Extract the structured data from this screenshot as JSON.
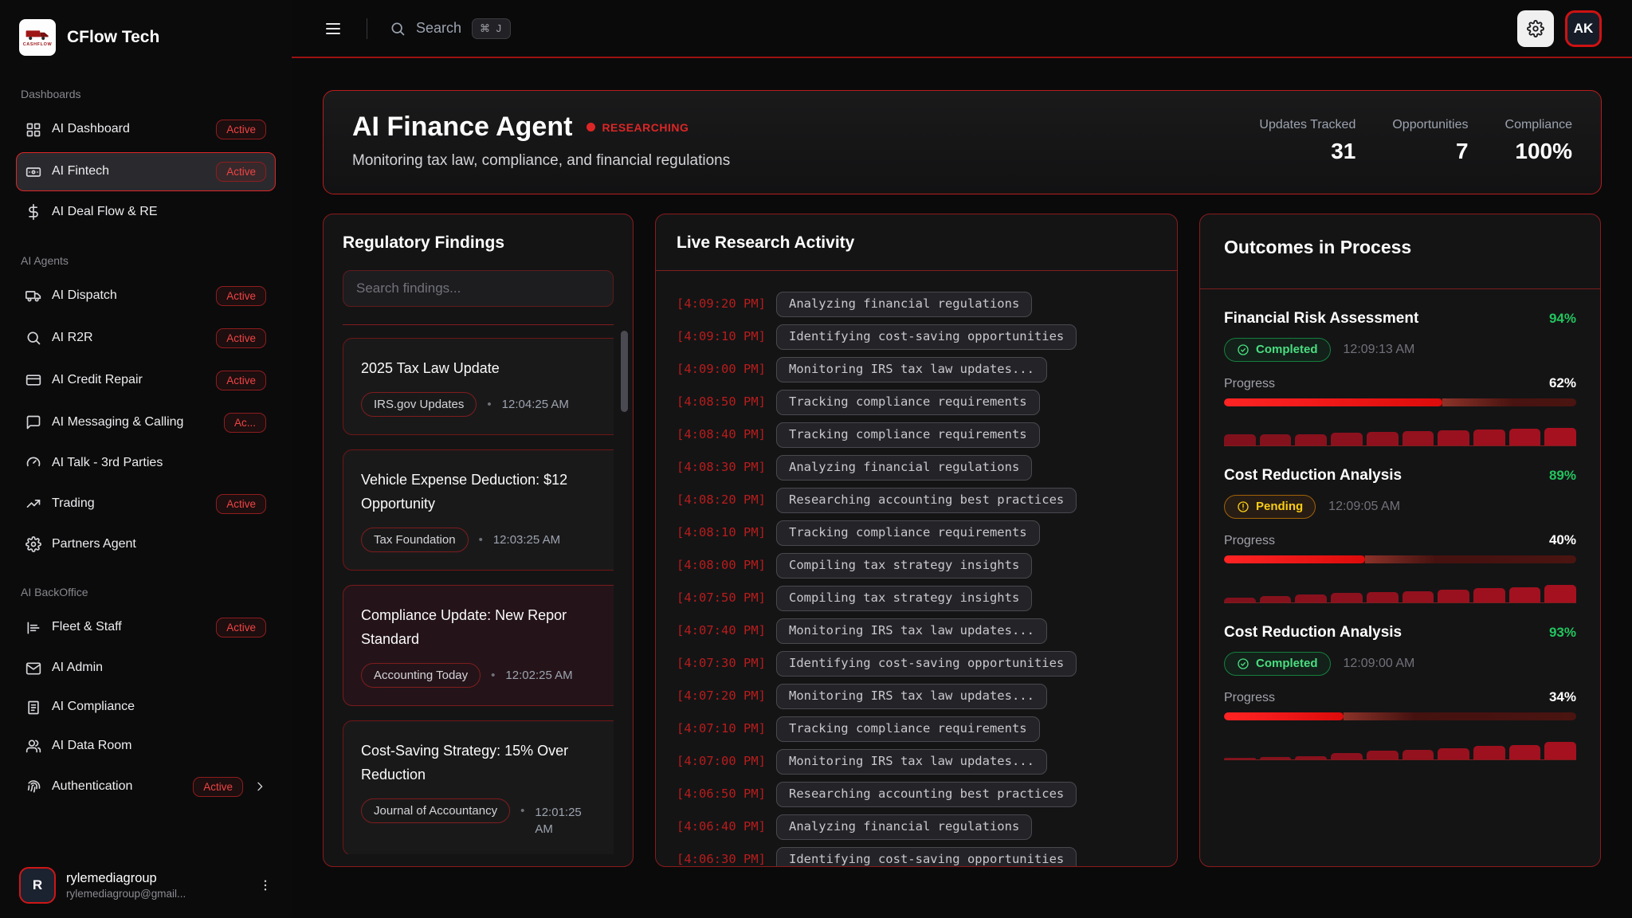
{
  "brand": {
    "name": "CFlow Tech",
    "logo_text": "CASHFLOW",
    "logo_icon": "truck-logo-icon"
  },
  "topbar": {
    "menu_icon": "menu-icon",
    "search_icon": "search-icon",
    "search_label": "Search",
    "search_shortcut": "⌘ J",
    "settings_icon": "gear-icon",
    "avatar_initials": "AK"
  },
  "sidebar": {
    "sections": [
      {
        "label": "Dashboards",
        "items": [
          {
            "label": "AI Dashboard",
            "icon": "grid-icon",
            "badge": "Active"
          },
          {
            "label": "AI Fintech",
            "icon": "banknote-icon",
            "badge": "Active",
            "selected": true
          },
          {
            "label": "AI Deal Flow & RE",
            "icon": "dollar-icon"
          }
        ]
      },
      {
        "label": "AI Agents",
        "items": [
          {
            "label": "AI Dispatch",
            "icon": "truck-icon",
            "badge": "Active"
          },
          {
            "label": "AI R2R",
            "icon": "search-icon",
            "badge": "Active"
          },
          {
            "label": "AI Credit Repair",
            "icon": "credit-card-icon",
            "badge": "Active"
          },
          {
            "label": "AI Messaging & Calling",
            "icon": "chat-icon",
            "badge": "Ac..."
          },
          {
            "label": "AI Talk - 3rd Parties",
            "icon": "gauge-icon"
          },
          {
            "label": "Trading",
            "icon": "trend-icon",
            "badge": "Active"
          },
          {
            "label": "Partners Agent",
            "icon": "gear-icon"
          }
        ]
      },
      {
        "label": "AI BackOffice",
        "items": [
          {
            "label": "Fleet & Staff",
            "icon": "bar-chart-icon",
            "badge": "Active"
          },
          {
            "label": "AI Admin",
            "icon": "mail-icon"
          },
          {
            "label": "AI Compliance",
            "icon": "document-icon"
          },
          {
            "label": "AI Data Room",
            "icon": "users-icon"
          },
          {
            "label": "Authentication",
            "icon": "fingerprint-icon",
            "badge": "Active",
            "chevron": "chevron-right-icon"
          }
        ]
      }
    ],
    "user": {
      "initial": "R",
      "name": "rylemediagroup",
      "email": "rylemediagroup@gmail...",
      "menu_icon": "dots-vertical-icon"
    }
  },
  "agent_header": {
    "title": "AI Finance Agent",
    "status": "RESEARCHING",
    "subtitle": "Monitoring tax law, compliance, and financial regulations",
    "stats": [
      {
        "label": "Updates Tracked",
        "value": "31"
      },
      {
        "label": "Opportunities",
        "value": "7"
      },
      {
        "label": "Compliance",
        "value": "100%"
      }
    ]
  },
  "findings": {
    "title": "Regulatory Findings",
    "search_placeholder": "Search findings...",
    "items": [
      {
        "lines": [
          "2025 Tax Law Update"
        ],
        "source": "IRS.gov Updates",
        "time": "12:04:25 AM"
      },
      {
        "lines": [
          "Vehicle Expense Deduction: $12",
          "Opportunity"
        ],
        "source": "Tax Foundation",
        "time": "12:03:25 AM"
      },
      {
        "lines": [
          "Compliance Update: New Repor",
          "Standard"
        ],
        "source": "Accounting Today",
        "time": "12:02:25 AM",
        "highlight": true
      },
      {
        "lines": [
          "Cost-Saving Strategy: 15% Over",
          "Reduction"
        ],
        "source": "Journal of Accountancy",
        "time": "12:01:25 AM",
        "time_wrapped": true
      }
    ]
  },
  "activity": {
    "title": "Live Research Activity",
    "entries": [
      {
        "time": "[4:09:20 PM]",
        "text": "Analyzing financial regulations"
      },
      {
        "time": "[4:09:10 PM]",
        "text": "Identifying cost-saving opportunities"
      },
      {
        "time": "[4:09:00 PM]",
        "text": "Monitoring IRS tax law updates..."
      },
      {
        "time": "[4:08:50 PM]",
        "text": "Tracking compliance requirements"
      },
      {
        "time": "[4:08:40 PM]",
        "text": "Tracking compliance requirements"
      },
      {
        "time": "[4:08:30 PM]",
        "text": "Analyzing financial regulations"
      },
      {
        "time": "[4:08:20 PM]",
        "text": "Researching accounting best practices"
      },
      {
        "time": "[4:08:10 PM]",
        "text": "Tracking compliance requirements"
      },
      {
        "time": "[4:08:00 PM]",
        "text": "Compiling tax strategy insights"
      },
      {
        "time": "[4:07:50 PM]",
        "text": "Compiling tax strategy insights"
      },
      {
        "time": "[4:07:40 PM]",
        "text": "Monitoring IRS tax law updates..."
      },
      {
        "time": "[4:07:30 PM]",
        "text": "Identifying cost-saving opportunities"
      },
      {
        "time": "[4:07:20 PM]",
        "text": "Monitoring IRS tax law updates..."
      },
      {
        "time": "[4:07:10 PM]",
        "text": "Tracking compliance requirements"
      },
      {
        "time": "[4:07:00 PM]",
        "text": "Monitoring IRS tax law updates..."
      },
      {
        "time": "[4:06:50 PM]",
        "text": "Researching accounting best practices"
      },
      {
        "time": "[4:06:40 PM]",
        "text": "Analyzing financial regulations"
      },
      {
        "time": "[4:06:30 PM]",
        "text": "Identifying cost-saving opportunities"
      }
    ]
  },
  "outcomes": {
    "title": "Outcomes in Process",
    "items": [
      {
        "name": "Financial Risk Assessment",
        "score": "94%",
        "status": "Completed",
        "status_class": "completed",
        "status_icon": "check-circle-icon",
        "time": "12:09:13 AM",
        "progress_label": "Progress",
        "progress": "62%",
        "progress_value": 62,
        "sparkline": [
          14,
          14,
          14,
          16,
          17,
          18,
          19,
          20,
          21,
          22
        ]
      },
      {
        "name": "Cost Reduction Analysis",
        "score": "89%",
        "status": "Pending",
        "status_class": "pending",
        "status_icon": "alert-circle-icon",
        "time": "12:09:05 AM",
        "progress_label": "Progress",
        "progress": "40%",
        "progress_value": 40,
        "sparkline": [
          6,
          8,
          10,
          12,
          13,
          14,
          16,
          18,
          19,
          22
        ]
      },
      {
        "name": "Cost Reduction Analysis",
        "score": "93%",
        "status": "Completed",
        "status_class": "completed",
        "status_icon": "check-circle-icon",
        "time": "12:09:00 AM",
        "progress_label": "Progress",
        "progress": "34%",
        "progress_value": 34,
        "sparkline": [
          2,
          3,
          4,
          8,
          11,
          12,
          14,
          17,
          18,
          22
        ]
      }
    ]
  },
  "colors": {
    "accent_red": "#dc2626",
    "success_green": "#22c55e",
    "pending_yellow": "#eab308"
  }
}
